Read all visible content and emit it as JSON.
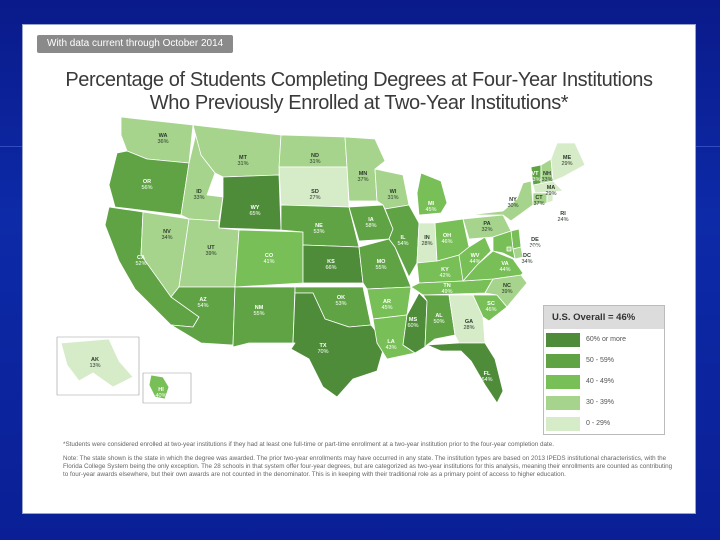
{
  "header_tab": "With data current through October 2014",
  "title_line1": "Percentage of Students Completing Degrees at Four-Year Institutions",
  "title_line2": "Who Previously Enrolled at Two-Year Institutions*",
  "colors": {
    "c60": "#4f8c3a",
    "c50": "#5fa345",
    "c40": "#78bf57",
    "c30": "#a6d48c",
    "c0": "#d6ebc8"
  },
  "legend": {
    "header": "U.S. Overall = 46%",
    "items": [
      {
        "label": "60% or more",
        "color_key": "c60"
      },
      {
        "label": "50 - 59%",
        "color_key": "c50"
      },
      {
        "label": "40 - 49%",
        "color_key": "c40"
      },
      {
        "label": "30 - 39%",
        "color_key": "c30"
      },
      {
        "label": "0 - 29%",
        "color_key": "c0"
      }
    ]
  },
  "states": [
    {
      "code": "WA",
      "pct": "36%",
      "c": "c30"
    },
    {
      "code": "OR",
      "pct": "56%",
      "c": "c50"
    },
    {
      "code": "CA",
      "pct": "52%",
      "c": "c50"
    },
    {
      "code": "NV",
      "pct": "34%",
      "c": "c30"
    },
    {
      "code": "ID",
      "pct": "33%",
      "c": "c30"
    },
    {
      "code": "MT",
      "pct": "31%",
      "c": "c30"
    },
    {
      "code": "WY",
      "pct": "65%",
      "c": "c60"
    },
    {
      "code": "UT",
      "pct": "39%",
      "c": "c30"
    },
    {
      "code": "AZ",
      "pct": "54%",
      "c": "c50"
    },
    {
      "code": "CO",
      "pct": "41%",
      "c": "c40"
    },
    {
      "code": "NM",
      "pct": "55%",
      "c": "c50"
    },
    {
      "code": "ND",
      "pct": "31%",
      "c": "c30"
    },
    {
      "code": "SD",
      "pct": "27%",
      "c": "c0"
    },
    {
      "code": "NE",
      "pct": "53%",
      "c": "c50"
    },
    {
      "code": "KS",
      "pct": "66%",
      "c": "c60"
    },
    {
      "code": "OK",
      "pct": "53%",
      "c": "c50"
    },
    {
      "code": "TX",
      "pct": "70%",
      "c": "c60"
    },
    {
      "code": "MN",
      "pct": "37%",
      "c": "c30"
    },
    {
      "code": "IA",
      "pct": "58%",
      "c": "c50"
    },
    {
      "code": "MO",
      "pct": "55%",
      "c": "c50"
    },
    {
      "code": "AR",
      "pct": "45%",
      "c": "c40"
    },
    {
      "code": "LA",
      "pct": "43%",
      "c": "c40"
    },
    {
      "code": "WI",
      "pct": "31%",
      "c": "c30"
    },
    {
      "code": "IL",
      "pct": "54%",
      "c": "c50"
    },
    {
      "code": "MS",
      "pct": "60%",
      "c": "c60"
    },
    {
      "code": "MI",
      "pct": "45%",
      "c": "c40"
    },
    {
      "code": "IN",
      "pct": "28%",
      "c": "c0"
    },
    {
      "code": "KY",
      "pct": "42%",
      "c": "c40"
    },
    {
      "code": "TN",
      "pct": "49%",
      "c": "c40"
    },
    {
      "code": "AL",
      "pct": "50%",
      "c": "c50"
    },
    {
      "code": "OH",
      "pct": "46%",
      "c": "c40"
    },
    {
      "code": "GA",
      "pct": "28%",
      "c": "c0"
    },
    {
      "code": "FL",
      "pct": "64%",
      "c": "c60"
    },
    {
      "code": "SC",
      "pct": "46%",
      "c": "c40"
    },
    {
      "code": "NC",
      "pct": "39%",
      "c": "c30"
    },
    {
      "code": "VA",
      "pct": "44%",
      "c": "c40"
    },
    {
      "code": "WV",
      "pct": "44%",
      "c": "c40"
    },
    {
      "code": "PA",
      "pct": "32%",
      "c": "c30"
    },
    {
      "code": "NY",
      "pct": "30%",
      "c": "c30"
    },
    {
      "code": "VT",
      "pct": "53%",
      "c": "c50"
    },
    {
      "code": "NH",
      "pct": "33%",
      "c": "c30"
    },
    {
      "code": "ME",
      "pct": "29%",
      "c": "c0"
    },
    {
      "code": "MA",
      "pct": "29%",
      "c": "c0"
    },
    {
      "code": "CT",
      "pct": "37%",
      "c": "c30"
    },
    {
      "code": "RI",
      "pct": "24%",
      "c": "c0"
    },
    {
      "code": "NJ",
      "pct": "40%",
      "c": "c40"
    },
    {
      "code": "DE",
      "pct": "30%",
      "c": "c30"
    },
    {
      "code": "MD",
      "pct": "42%",
      "c": "c40"
    },
    {
      "code": "DC",
      "pct": "34%",
      "c": "c30"
    },
    {
      "code": "AK",
      "pct": "13%",
      "c": "c0"
    },
    {
      "code": "HI",
      "pct": "40%",
      "c": "c40"
    }
  ],
  "footnote1": "*Students were considered enrolled at two-year institutions if they had at least one full-time or part-time enrollment at a two-year institution prior to the four-year completion date.",
  "footnote2": "Note: The state shown is the state in which the degree was awarded. The prior two-year enrollments may have occurred in any state. The institution types are based on 2013 IPEDS institutional characteristics, with the Florida College System being the only exception. The 28 schools in that system offer four-year degrees, but are categorized as two-year institutions for this analysis, meaning their enrollments are counted as contributing to four-year awards elsewhere, but their own awards are not counted in the denominator. This is in keeping with their traditional role as a primary point of access to higher education."
}
